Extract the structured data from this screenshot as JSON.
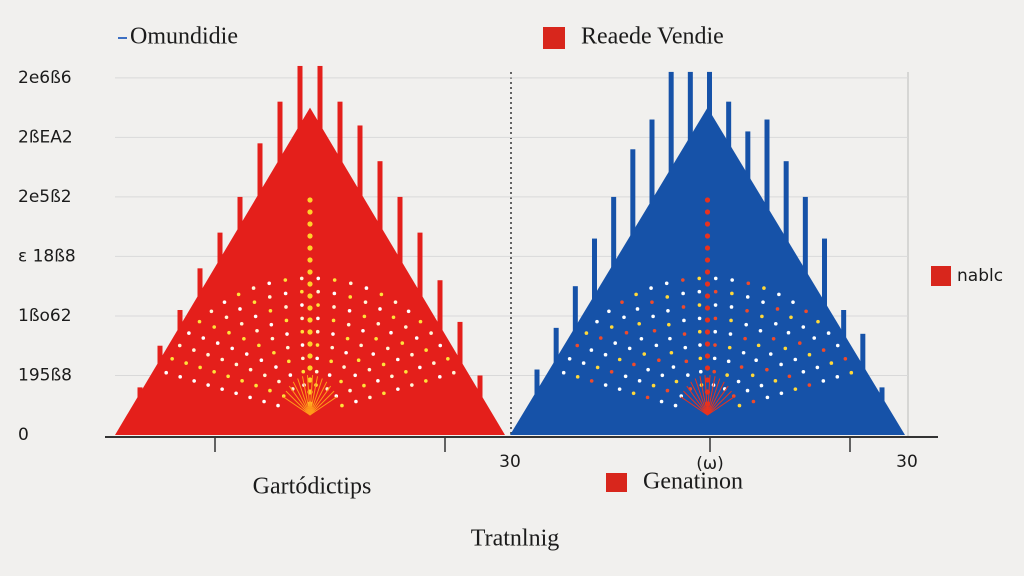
{
  "chart_data": {
    "type": "bar",
    "legend": [
      {
        "label": "Omundidie",
        "color": "#3d6fc2",
        "marker": "dash"
      },
      {
        "label": "Reaede Vendie",
        "color": "#d8261c",
        "marker": "square"
      },
      {
        "label": "nablc",
        "color": "#d8261c",
        "marker": "square"
      }
    ],
    "ylim": [
      0,
      6.3
    ],
    "yticks": [
      {
        "value": 0,
        "label": "0"
      },
      {
        "value": 1,
        "label": "195ß8"
      },
      {
        "value": 2,
        "label": "1ßo62"
      },
      {
        "value": 3,
        "label": "ε 18ß8"
      },
      {
        "value": 4,
        "label": "2e5ß2"
      },
      {
        "value": 5,
        "label": "2ßEA2"
      },
      {
        "value": 6,
        "label": "2e6ß6"
      }
    ],
    "grid": true,
    "x_labels": [
      "30",
      "(ω)",
      "30"
    ],
    "x_title": "Gartódictips",
    "x_legend": {
      "label": "Genatinon",
      "color": "#d8261c"
    },
    "footer": "Tratnlnig",
    "panels": [
      {
        "color": "#e41f1b",
        "envelope": [
          0,
          5.5,
          0
        ],
        "spikes": [
          0.8,
          1.5,
          2.1,
          2.8,
          3.4,
          4.0,
          4.9,
          5.6,
          6.2,
          6.2,
          5.6,
          5.2,
          4.6,
          4.0,
          3.4,
          2.6,
          1.9,
          1.0
        ]
      },
      {
        "color": "#1652a8",
        "envelope": [
          0,
          5.5,
          0
        ],
        "spikes": [
          1.1,
          1.8,
          2.5,
          3.3,
          4.0,
          4.8,
          5.3,
          6.1,
          6.1,
          6.1,
          5.6,
          5.1,
          5.3,
          4.6,
          4.0,
          3.3,
          2.1,
          1.7,
          0.8
        ]
      }
    ]
  }
}
